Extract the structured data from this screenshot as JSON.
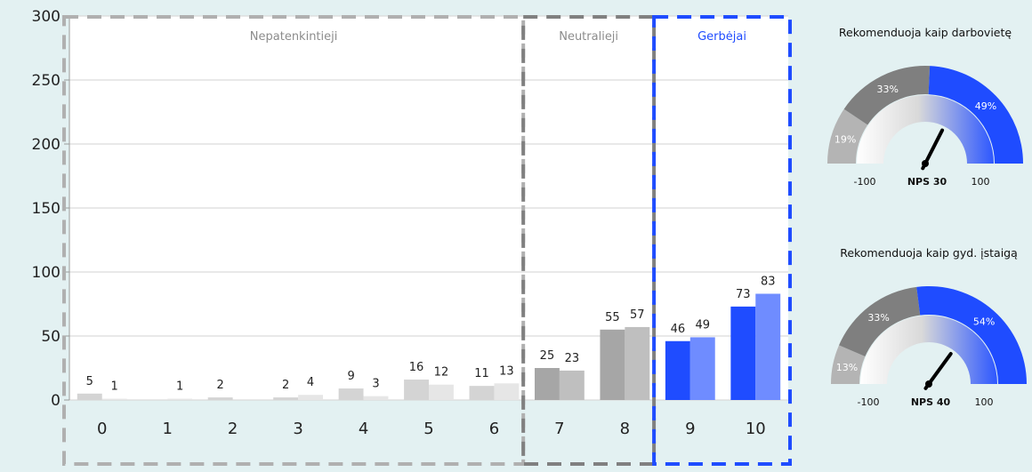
{
  "colors": {
    "background": "#e3f1f2",
    "plot_background": "#ffffff",
    "grid": "#d9d9d9",
    "detractor_a": "#d4d4d4",
    "detractor_b": "#e6e6e6",
    "passive_a": "#a6a6a6",
    "passive_b": "#bfbfbf",
    "promoter_a": "#1f4cff",
    "promoter_b": "#6f8cff",
    "box_detractors": "#b0b0b0",
    "box_passives": "#808080",
    "box_promoters": "#1f4cff",
    "label_promoters": "#1f4cff",
    "label_muted": "#8c8c8c",
    "gauge_low": "#b4b4b4",
    "gauge_mid": "#7f7f7f",
    "gauge_high": "#1f4cff",
    "needle": "#000000"
  },
  "chart_data": [
    {
      "type": "bar",
      "categories": [
        "0",
        "1",
        "2",
        "3",
        "4",
        "5",
        "6",
        "7",
        "8",
        "9",
        "10"
      ],
      "series": [
        {
          "values": [
            5,
            0,
            2,
            2,
            9,
            16,
            11,
            25,
            55,
            46,
            73
          ]
        },
        {
          "values": [
            1,
            1,
            0,
            4,
            3,
            12,
            13,
            23,
            57,
            49,
            83
          ]
        }
      ],
      "data_labels": [
        [
          "5",
          "",
          "2",
          "2",
          "9",
          "16",
          "11",
          "25",
          "55",
          "46",
          "73"
        ],
        [
          "1",
          "1",
          "",
          "4",
          "3",
          "12",
          "13",
          "23",
          "57",
          "49",
          "83"
        ]
      ],
      "ylim": [
        0,
        300
      ],
      "yticks": [
        "0",
        "50",
        "100",
        "150",
        "200",
        "250",
        "300"
      ],
      "grid": true,
      "groups": [
        {
          "label": "Nepatenkintieji",
          "from": 0,
          "to": 6
        },
        {
          "label": "Neutralieji",
          "from": 7,
          "to": 8
        },
        {
          "label": "Gerbėjai",
          "from": 9,
          "to": 10
        }
      ]
    },
    {
      "type": "gauge",
      "title": "Rekomenduoja kaip darbovietę",
      "segments": [
        {
          "label": "19%",
          "value": 19
        },
        {
          "label": "33%",
          "value": 33
        },
        {
          "label": "49%",
          "value": 49
        }
      ],
      "nps": 30,
      "nps_label": "NPS 30",
      "min_label": "-100",
      "max_label": "100"
    },
    {
      "type": "gauge",
      "title": "Rekomenduoja kaip gyd. įstaigą",
      "segments": [
        {
          "label": "13%",
          "value": 13
        },
        {
          "label": "33%",
          "value": 33
        },
        {
          "label": "54%",
          "value": 54
        }
      ],
      "nps": 40,
      "nps_label": "NPS 40",
      "min_label": "-100",
      "max_label": "100"
    }
  ]
}
